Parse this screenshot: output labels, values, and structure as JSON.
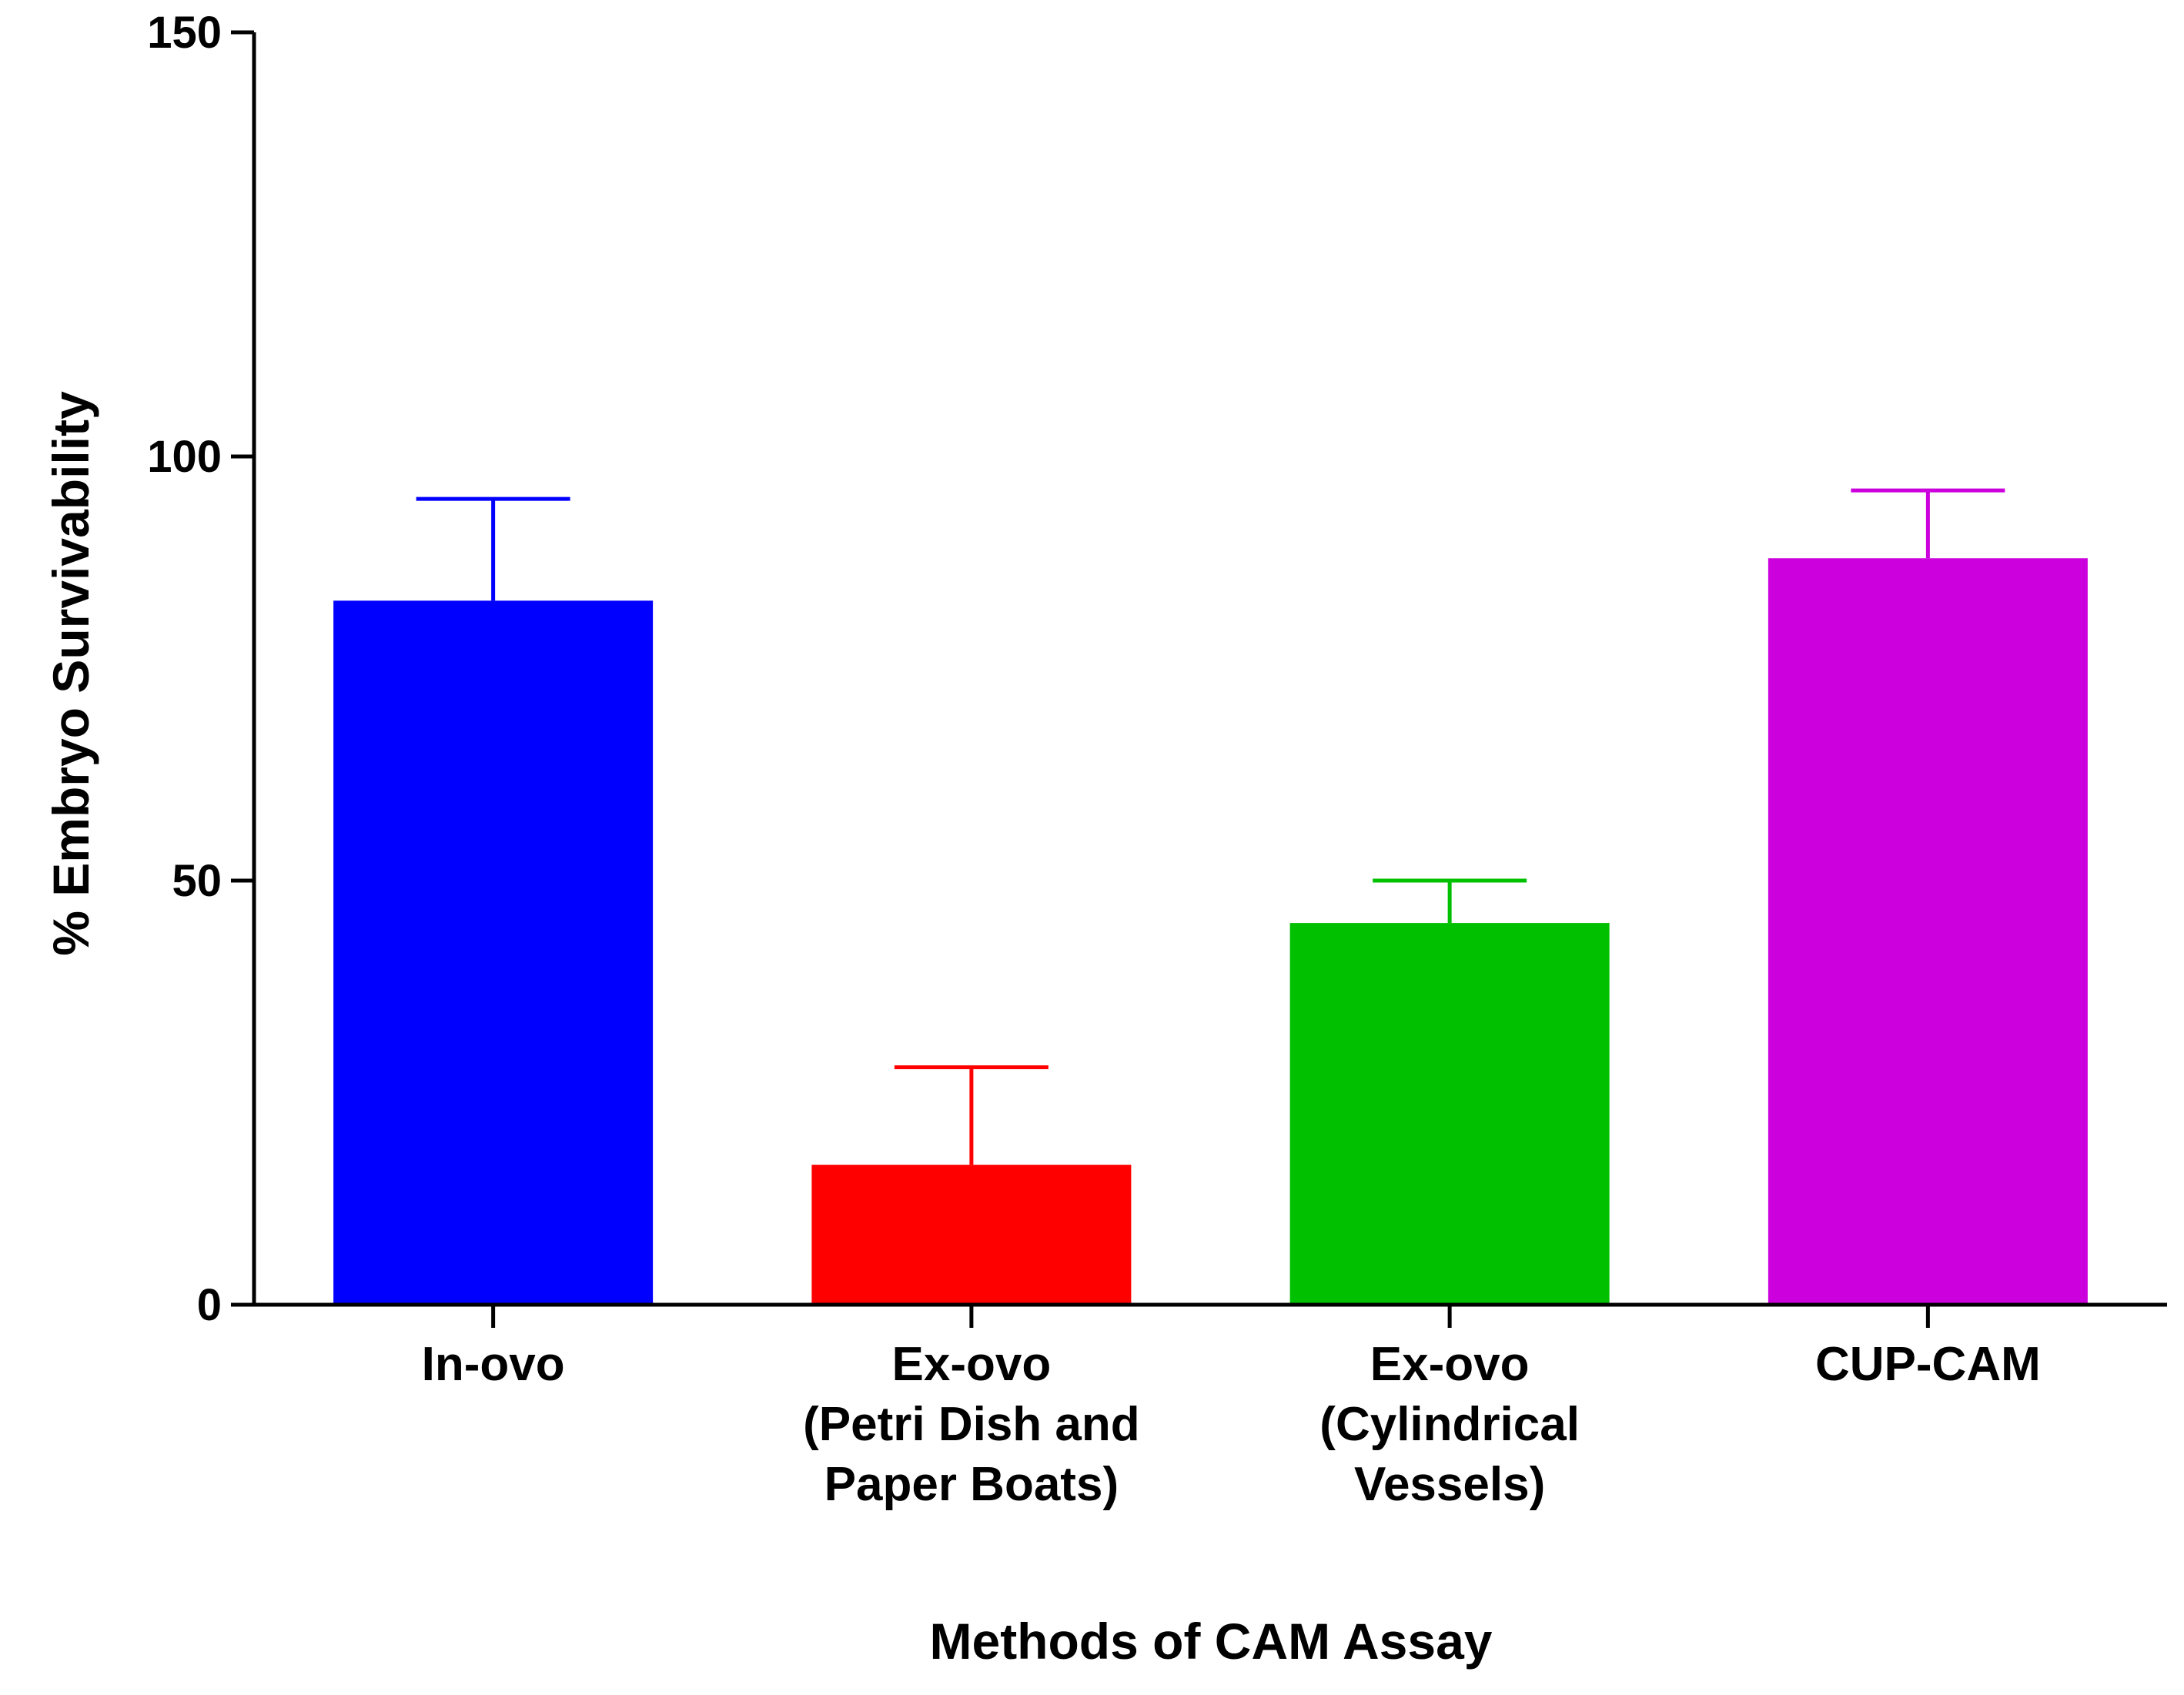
{
  "chart_data": {
    "type": "bar",
    "title": "",
    "xlabel": "Methods of CAM Assay",
    "ylabel": "% Embryo Survivability",
    "ylim": [
      0,
      150
    ],
    "yticks": [
      0,
      50,
      100,
      150
    ],
    "yticklabels": [
      "0",
      "50",
      "100",
      "150"
    ],
    "grid": false,
    "legend": "none",
    "categories": [
      [
        "In-ovo"
      ],
      [
        "Ex-ovo",
        "(Petri Dish and",
        "Paper Boats)"
      ],
      [
        "Ex-ovo",
        "(Cylindrical",
        "Vessels)"
      ],
      [
        "CUP-CAM"
      ]
    ],
    "values": [
      83,
      16.5,
      45,
      88
    ],
    "error_upper": [
      95,
      28,
      50,
      96
    ],
    "colors": [
      "#0000ff",
      "#ff0000",
      "#00c000",
      "#cc00dd"
    ]
  }
}
